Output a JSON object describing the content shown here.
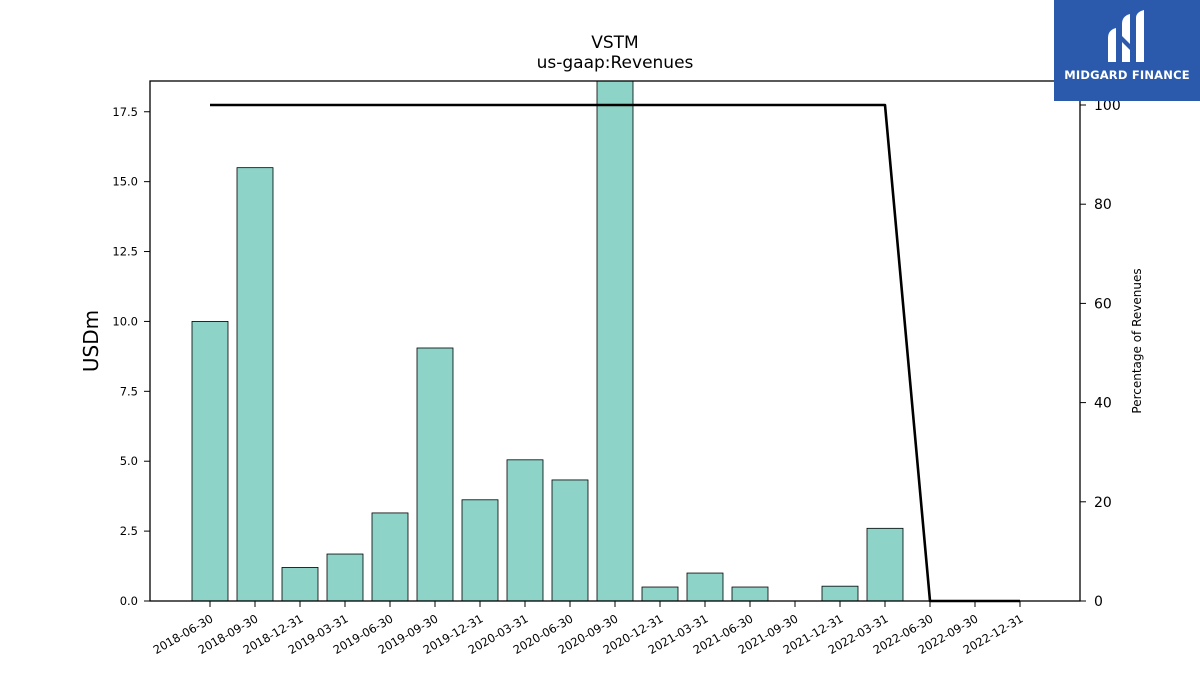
{
  "chart_data": {
    "type": "bar",
    "title": "VSTM",
    "subtitle": "us-gaap:Revenues",
    "ylabel": "USDm",
    "y2label": "Percentage of Revenues",
    "ylim": [
      0,
      18.6
    ],
    "y2lim": [
      0,
      100
    ],
    "yticks": [
      "0.0",
      "2.5",
      "5.0",
      "7.5",
      "10.0",
      "12.5",
      "15.0",
      "17.5"
    ],
    "y2ticks": [
      "0",
      "20",
      "40",
      "60",
      "80",
      "100"
    ],
    "categories": [
      "2018-06-30",
      "2018-09-30",
      "2018-12-31",
      "2019-03-31",
      "2019-06-30",
      "2019-09-30",
      "2019-12-31",
      "2020-03-31",
      "2020-06-30",
      "2020-09-30",
      "2020-12-31",
      "2021-03-31",
      "2021-06-30",
      "2021-09-30",
      "2021-12-31",
      "2022-03-31",
      "2022-06-30",
      "2022-09-30",
      "2022-12-31"
    ],
    "series": [
      {
        "type": "bar",
        "axis": "left",
        "color": "#8dd3c7",
        "values": [
          10.0,
          15.5,
          1.2,
          1.68,
          3.15,
          9.05,
          3.62,
          5.05,
          4.33,
          18.7,
          0.5,
          1.0,
          0.5,
          null,
          0.53,
          2.6,
          null,
          null,
          null
        ]
      },
      {
        "type": "line",
        "axis": "right",
        "color": "#000000",
        "values": [
          100,
          null,
          null,
          null,
          null,
          null,
          null,
          null,
          null,
          null,
          null,
          null,
          null,
          null,
          null,
          100,
          0,
          0,
          0
        ]
      }
    ],
    "grid": false,
    "legend": "none"
  },
  "logo": {
    "text": "MIDGARD FINANCE",
    "icon": "midgard-logo-icon",
    "color": "#2b5aad"
  }
}
